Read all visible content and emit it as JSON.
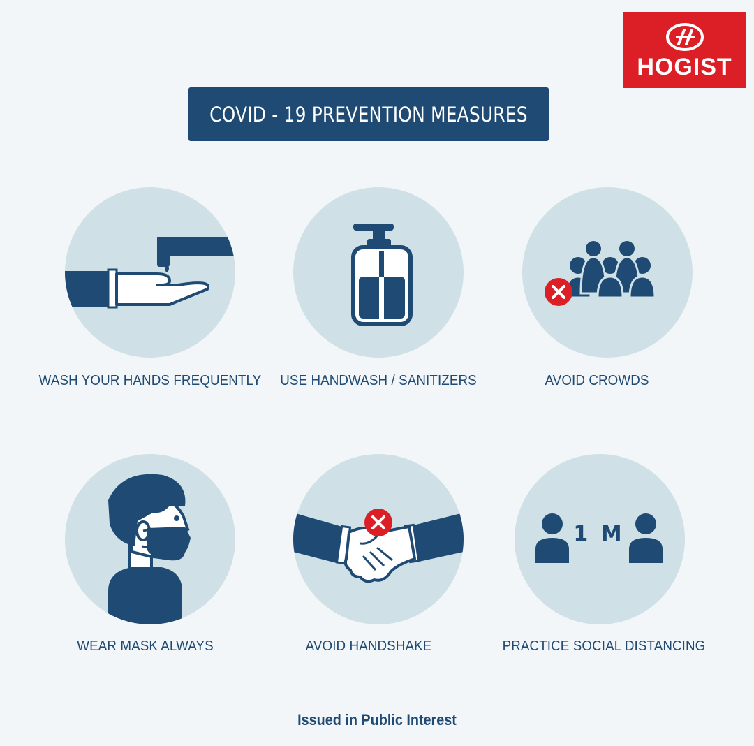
{
  "brand": {
    "name": "HOGIST",
    "logo_color": "#dc1f26"
  },
  "banner": {
    "title": "COVID - 19 PREVENTION MEASURES"
  },
  "colors": {
    "primary": "#1f4a73",
    "circle": "#cfe1e6",
    "background": "#f2f6f8",
    "alert": "#dc1f26"
  },
  "measures": [
    {
      "label": "WASH YOUR HANDS FREQUENTLY",
      "icon": "hand-wash-icon"
    },
    {
      "label": "USE HANDWASH / SANITIZERS",
      "icon": "sanitizer-bottle-icon"
    },
    {
      "label": "AVOID CROWDS",
      "icon": "crowd-icon"
    },
    {
      "label": "WEAR MASK ALWAYS",
      "icon": "mask-icon"
    },
    {
      "label": "AVOID HANDSHAKE",
      "icon": "handshake-icon"
    },
    {
      "label": "PRACTICE SOCIAL DISTANCING",
      "icon": "social-distance-icon",
      "distance_text": "1 M"
    }
  ],
  "footer": {
    "text": "Issued in Public Interest"
  }
}
